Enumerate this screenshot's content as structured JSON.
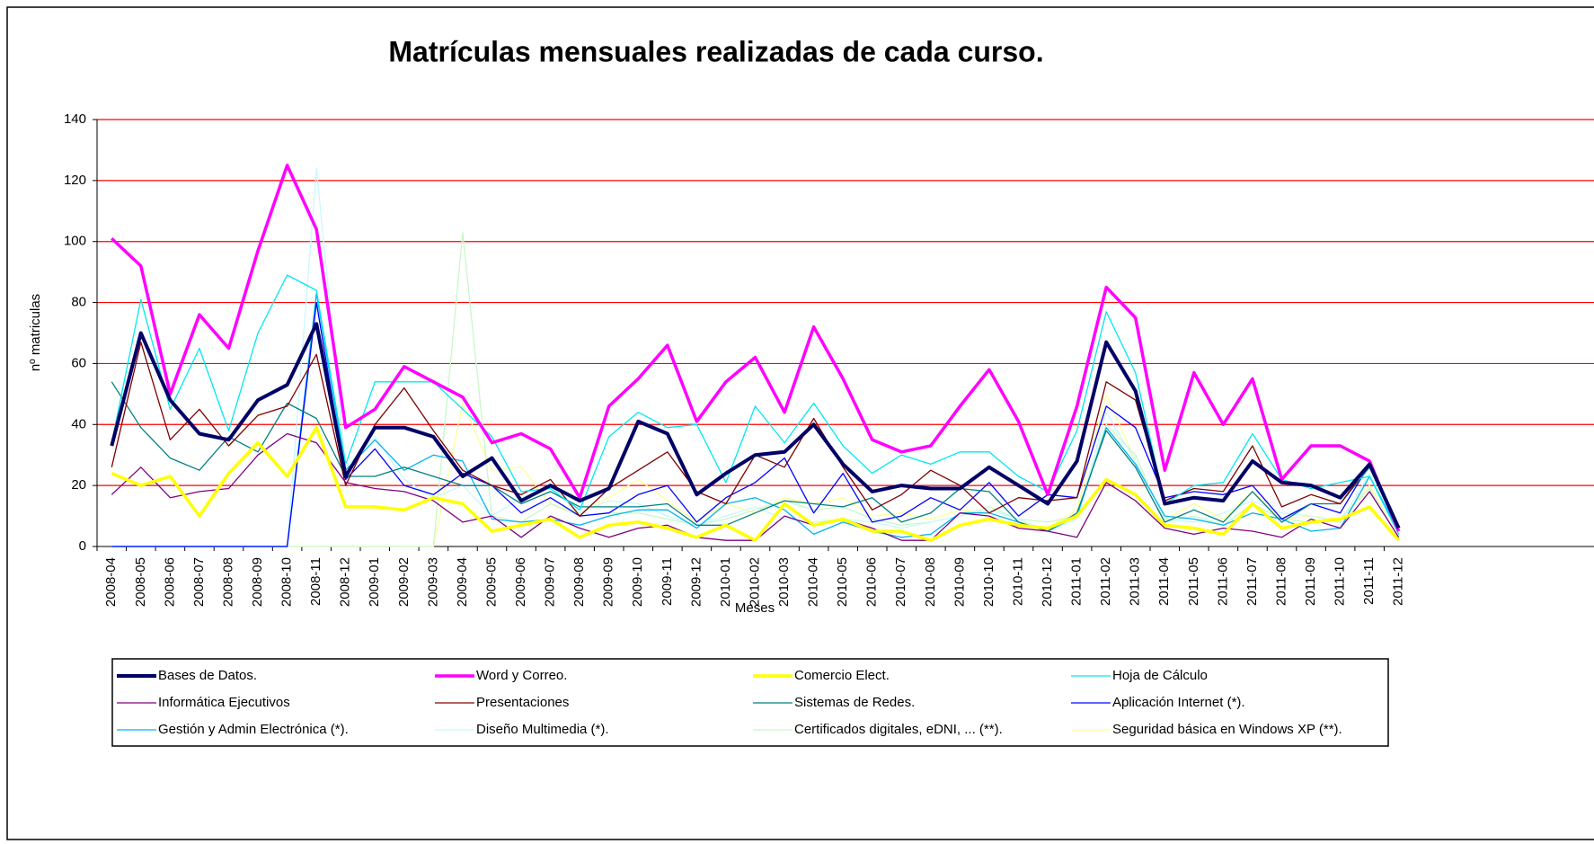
{
  "chart_data": {
    "type": "line",
    "title": "Matrículas mensuales realizadas de cada curso.",
    "x_label": "Meses",
    "y_label": "nº matriculas",
    "categories": [
      "2008-04",
      "2008-05",
      "2008-06",
      "2008-07",
      "2008-08",
      "2008-09",
      "2008-10",
      "2008-11",
      "2008-12",
      "2009-01",
      "2009-02",
      "2009-03",
      "2009-04",
      "2009-05",
      "2009-06",
      "2009-07",
      "2009-08",
      "2009-09",
      "2009-10",
      "2009-11",
      "2009-12",
      "2010-01",
      "2010-02",
      "2010-03",
      "2010-04",
      "2010-05",
      "2010-06",
      "2010-07",
      "2010-08",
      "2010-09",
      "2010-10",
      "2010-11",
      "2010-12",
      "2011-01",
      "2011-02",
      "2011-03",
      "2011-04",
      "2011-05",
      "2011-06",
      "2011-07",
      "2011-08",
      "2011-09",
      "2011-10",
      "2011-11",
      "2011-12"
    ],
    "ylim": [
      0,
      140
    ],
    "yticks": [
      0,
      20,
      40,
      60,
      80,
      100,
      120,
      140
    ],
    "grid": true,
    "grid_color": "#ff0000",
    "legend": "bottom",
    "series": [
      {
        "name": "Bases de Datos.",
        "color": "#000066",
        "width": 4,
        "values": [
          33,
          70,
          48,
          37,
          35,
          48,
          53,
          73,
          23,
          39,
          39,
          36,
          23,
          29,
          15,
          20,
          15,
          19,
          41,
          37,
          17,
          24,
          30,
          31,
          40,
          27,
          18,
          20,
          19,
          19,
          26,
          20,
          14,
          28,
          67,
          51,
          14,
          16,
          15,
          28,
          21,
          20,
          16,
          27,
          6
        ]
      },
      {
        "name": "Word y Correo.",
        "color": "#ff00ff",
        "width": 3.5,
        "values": [
          101,
          92,
          50,
          76,
          65,
          97,
          125,
          104,
          39,
          45,
          59,
          54,
          49,
          34,
          37,
          32,
          16,
          46,
          55,
          66,
          41,
          54,
          62,
          44,
          72,
          55,
          35,
          31,
          33,
          46,
          58,
          41,
          17,
          46,
          85,
          75,
          25,
          57,
          40,
          55,
          22,
          33,
          33,
          28,
          5
        ]
      },
      {
        "name": "Comercio Elect.",
        "color": "#ffff00",
        "width": 3.5,
        "values": [
          24,
          20,
          23,
          10,
          24,
          34,
          23,
          39,
          13,
          13,
          12,
          16,
          14,
          5,
          7,
          9,
          3,
          7,
          8,
          6,
          3,
          7,
          2,
          14,
          7,
          9,
          5,
          5,
          2,
          7,
          9,
          7,
          6,
          10,
          22,
          17,
          7,
          6,
          4,
          14,
          6,
          8,
          9,
          13,
          2
        ]
      },
      {
        "name": "Hoja de Cálculo",
        "color": "#00e8f0",
        "width": 1.3,
        "values": [
          34,
          81,
          45,
          65,
          38,
          70,
          89,
          84,
          27,
          54,
          54,
          54,
          45,
          36,
          18,
          19,
          12,
          36,
          44,
          39,
          40,
          21,
          46,
          34,
          47,
          33,
          24,
          30,
          27,
          31,
          31,
          23,
          18,
          38,
          77,
          57,
          14,
          20,
          21,
          37,
          22,
          19,
          21,
          23,
          4
        ]
      },
      {
        "name": "Informática Ejecutivos",
        "color": "#800080",
        "width": 1.3,
        "values": [
          17,
          26,
          16,
          18,
          19,
          30,
          37,
          34,
          21,
          19,
          18,
          15,
          8,
          10,
          3,
          10,
          6,
          3,
          6,
          7,
          3,
          2,
          2,
          10,
          7,
          9,
          6,
          2,
          2,
          11,
          10,
          6,
          5,
          3,
          21,
          15,
          6,
          4,
          6,
          5,
          3,
          9,
          6,
          18,
          3
        ]
      },
      {
        "name": "Presentaciones",
        "color": "#800000",
        "width": 1.3,
        "values": [
          26,
          67,
          35,
          45,
          33,
          43,
          46,
          63,
          20,
          40,
          52,
          38,
          25,
          20,
          17,
          22,
          10,
          19,
          25,
          31,
          18,
          14,
          30,
          26,
          42,
          26,
          12,
          17,
          25,
          20,
          11,
          16,
          15,
          16,
          54,
          48,
          15,
          19,
          18,
          33,
          13,
          17,
          14,
          27,
          5
        ]
      },
      {
        "name": "Sistemas de Redes.",
        "color": "#008080",
        "width": 1.3,
        "values": [
          54,
          39,
          29,
          25,
          36,
          31,
          47,
          42,
          23,
          23,
          26,
          23,
          20,
          20,
          14,
          18,
          13,
          13,
          13,
          14,
          7,
          7,
          11,
          15,
          14,
          13,
          16,
          8,
          11,
          19,
          18,
          8,
          5,
          11,
          38,
          26,
          8,
          12,
          8,
          18,
          8,
          14,
          14,
          26,
          5
        ]
      },
      {
        "name": "Aplicación Internet (*).",
        "color": "#0000ff",
        "width": 1.3,
        "values": [
          0,
          0,
          0,
          0,
          0,
          0,
          0,
          80,
          22,
          32,
          20,
          17,
          24,
          20,
          11,
          16,
          10,
          11,
          17,
          20,
          8,
          16,
          21,
          29,
          11,
          24,
          8,
          10,
          16,
          12,
          21,
          10,
          17,
          16,
          46,
          39,
          16,
          18,
          17,
          20,
          9,
          14,
          11,
          27,
          6
        ]
      },
      {
        "name": "Gestión y Admin Electrónica (*).",
        "color": "#00b4f0",
        "width": 1.3,
        "values": [
          0,
          0,
          0,
          0,
          0,
          0,
          0,
          83,
          25,
          35,
          25,
          30,
          28,
          9,
          8,
          9,
          7,
          10,
          12,
          12,
          6,
          14,
          16,
          12,
          4,
          8,
          5,
          3,
          4,
          11,
          11,
          8,
          5,
          10,
          39,
          27,
          10,
          9,
          7,
          11,
          9,
          5,
          6,
          23,
          5
        ]
      },
      {
        "name": "Diseño Multimedia (*).",
        "color": "#c8f8ff",
        "width": 1.3,
        "values": [
          0,
          0,
          0,
          0,
          0,
          0,
          0,
          124,
          26,
          36,
          22,
          16,
          20,
          10,
          16,
          19,
          11,
          15,
          14,
          10,
          7,
          10,
          13,
          9,
          8,
          9,
          8,
          6,
          8,
          10,
          12,
          9,
          5,
          9,
          44,
          28,
          9,
          8,
          11,
          15,
          11,
          10,
          8,
          24,
          4
        ]
      },
      {
        "name": "Certificados digitales, eDNI, ... (**).",
        "color": "#c8f8c8",
        "width": 1.3,
        "values": [
          0,
          0,
          0,
          0,
          0,
          0,
          0,
          0,
          0,
          0,
          0,
          0,
          103,
          10,
          8,
          14,
          10,
          11,
          11,
          9,
          7,
          9,
          12,
          15,
          12,
          13,
          9,
          7,
          8,
          10,
          13,
          9,
          8,
          10,
          40,
          30,
          8,
          10,
          7,
          14,
          9,
          8,
          9,
          19,
          3
        ]
      },
      {
        "name": "Seguridad básica en Windows XP (**).",
        "color": "#ffff99",
        "width": 1.3,
        "values": [
          0,
          0,
          0,
          0,
          0,
          0,
          0,
          0,
          0,
          0,
          0,
          0,
          47,
          25,
          26,
          14,
          11,
          16,
          22,
          15,
          8,
          14,
          11,
          16,
          14,
          16,
          10,
          11,
          9,
          12,
          11,
          8,
          6,
          12,
          50,
          28,
          9,
          14,
          9,
          18,
          9,
          10,
          9,
          20,
          3
        ]
      }
    ]
  }
}
